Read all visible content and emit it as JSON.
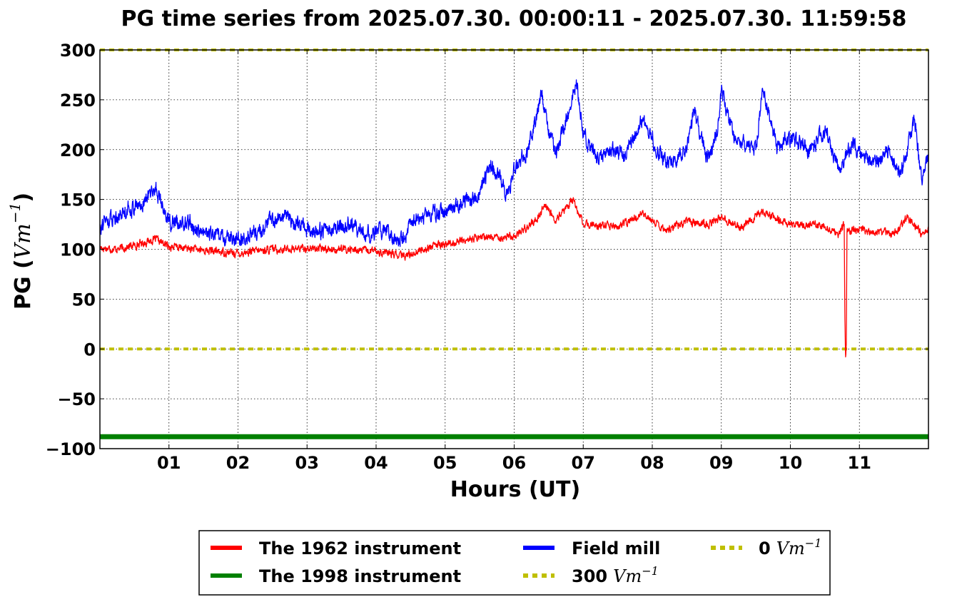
{
  "chart_data": {
    "type": "line",
    "title": "PG time series from 2025.07.30. 00:00:11 - 2025.07.30. 11:59:58",
    "xlabel": "Hours (UT)",
    "ylabel_main": "PG (",
    "ylabel_unit": "Vm",
    "ylabel_exp": "−1",
    "ylabel_close": ")",
    "xlim": [
      0,
      12
    ],
    "ylim": [
      -100,
      300
    ],
    "grid": true,
    "x_ticks": [
      {
        "x": 1,
        "label": "01"
      },
      {
        "x": 2,
        "label": "02"
      },
      {
        "x": 3,
        "label": "03"
      },
      {
        "x": 4,
        "label": "04"
      },
      {
        "x": 5,
        "label": "05"
      },
      {
        "x": 6,
        "label": "06"
      },
      {
        "x": 7,
        "label": "07"
      },
      {
        "x": 8,
        "label": "08"
      },
      {
        "x": 9,
        "label": "09"
      },
      {
        "x": 10,
        "label": "10"
      },
      {
        "x": 11,
        "label": "11"
      }
    ],
    "y_ticks": [
      {
        "y": 300,
        "label": "300"
      },
      {
        "y": 250,
        "label": "250"
      },
      {
        "y": 200,
        "label": "200"
      },
      {
        "y": 150,
        "label": "150"
      },
      {
        "y": 100,
        "label": "100"
      },
      {
        "y": 50,
        "label": "50"
      },
      {
        "y": 0,
        "label": "0"
      },
      {
        "y": -50,
        "label": "−50"
      },
      {
        "y": -100,
        "label": "−100"
      }
    ],
    "legend_position": "below plot",
    "series": [
      {
        "name": "The 1962 instrument",
        "color": "#ff0000",
        "style": "solid",
        "x": [
          0,
          0.25,
          0.5,
          0.8,
          1.0,
          1.5,
          2.0,
          2.5,
          3.0,
          3.5,
          4.0,
          4.4,
          4.8,
          5.0,
          5.5,
          6.0,
          6.3,
          6.45,
          6.6,
          6.85,
          7.0,
          7.5,
          7.85,
          8.2,
          8.5,
          8.8,
          9.0,
          9.3,
          9.6,
          10.0,
          10.4,
          10.7,
          10.78,
          10.79,
          10.8,
          10.81,
          10.82,
          10.9,
          11.2,
          11.5,
          11.7,
          11.9,
          12.0
        ],
        "y": [
          102,
          100,
          104,
          110,
          103,
          99,
          96,
          100,
          101,
          100,
          98,
          93,
          103,
          105,
          112,
          113,
          128,
          145,
          128,
          150,
          125,
          122,
          135,
          120,
          128,
          125,
          132,
          122,
          138,
          125,
          125,
          115,
          125,
          30,
          -8,
          5,
          118,
          120,
          118,
          115,
          132,
          115,
          120
        ]
      },
      {
        "name": "The 1998 instrument",
        "color": "#008000",
        "style": "thick",
        "x": [
          0,
          12
        ],
        "y": [
          -88,
          -88
        ]
      },
      {
        "name": "Field mill",
        "color": "#0000ff",
        "style": "solid",
        "x": [
          0,
          0.2,
          0.4,
          0.6,
          0.8,
          1.0,
          1.3,
          1.5,
          1.8,
          2.0,
          2.3,
          2.6,
          2.8,
          3.0,
          3.3,
          3.6,
          3.9,
          4.1,
          4.35,
          4.5,
          4.7,
          5.0,
          5.25,
          5.5,
          5.65,
          5.8,
          5.9,
          6.0,
          6.2,
          6.4,
          6.5,
          6.6,
          6.8,
          6.9,
          7.0,
          7.2,
          7.4,
          7.6,
          7.85,
          8.0,
          8.2,
          8.5,
          8.6,
          8.8,
          8.95,
          9.0,
          9.2,
          9.5,
          9.6,
          9.8,
          10.0,
          10.3,
          10.5,
          10.7,
          10.9,
          11.2,
          11.4,
          11.6,
          11.8,
          11.9,
          12.0
        ],
        "y": [
          125,
          132,
          140,
          145,
          162,
          128,
          125,
          115,
          112,
          110,
          118,
          135,
          128,
          120,
          118,
          125,
          115,
          120,
          108,
          125,
          135,
          138,
          145,
          155,
          185,
          170,
          155,
          180,
          200,
          255,
          220,
          195,
          240,
          270,
          215,
          190,
          200,
          195,
          230,
          210,
          185,
          200,
          240,
          190,
          220,
          260,
          210,
          200,
          260,
          205,
          210,
          200,
          220,
          180,
          205,
          185,
          200,
          175,
          230,
          170,
          195
        ]
      },
      {
        "name": "300",
        "unit": "Vm",
        "exp": "−1",
        "color": "#bfbf00",
        "style": "dotted",
        "x": [
          0,
          12
        ],
        "y": [
          300,
          300
        ]
      },
      {
        "name": "0",
        "unit": "Vm",
        "exp": "−1",
        "color": "#bfbf00",
        "style": "dotted",
        "x": [
          0,
          12
        ],
        "y": [
          0,
          0
        ]
      }
    ]
  }
}
